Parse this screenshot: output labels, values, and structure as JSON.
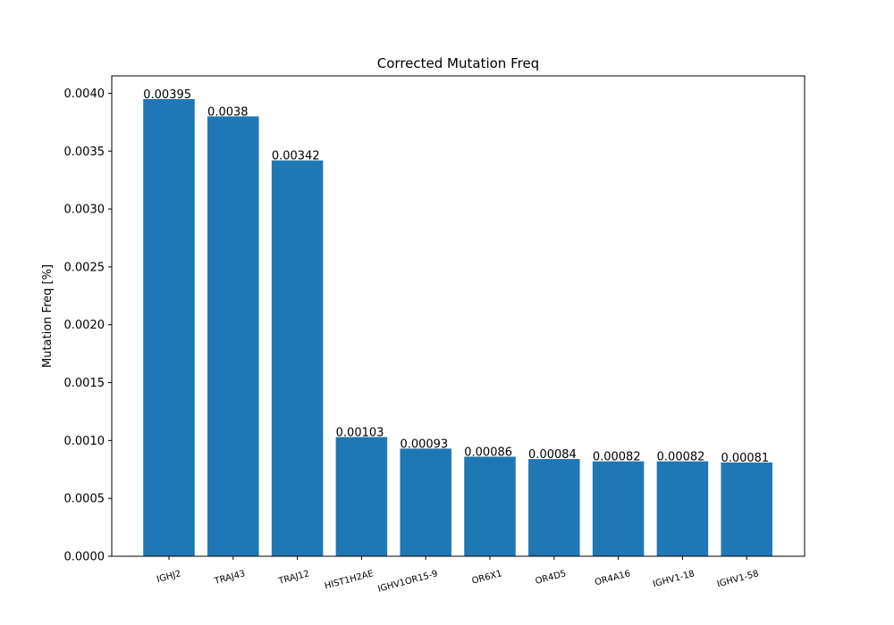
{
  "chart_data": {
    "type": "bar",
    "title": "Corrected Mutation Freq",
    "xlabel": "",
    "ylabel": "Mutation Freq [%]",
    "ylim": [
      0,
      0.00415
    ],
    "yticks": [
      "0.0000",
      "0.0005",
      "0.0010",
      "0.0015",
      "0.0020",
      "0.0025",
      "0.0030",
      "0.0035",
      "0.0040"
    ],
    "ytick_values": [
      0,
      0.0005,
      0.001,
      0.0015,
      0.002,
      0.0025,
      0.003,
      0.0035,
      0.004
    ],
    "categories": [
      "IGHJ2",
      "TRAJ43",
      "TRAJ12",
      "HIST1H2AE",
      "IGHV1OR15-9",
      "OR6X1",
      "OR4D5",
      "OR4A16",
      "IGHV1-18",
      "IGHV1-58"
    ],
    "values": [
      0.00395,
      0.0038,
      0.00342,
      0.00103,
      0.00093,
      0.00086,
      0.00084,
      0.00082,
      0.00082,
      0.00081
    ],
    "data_labels": [
      "0.00395",
      "0.0038",
      "0.00342",
      "0.00103",
      "0.00093",
      "0.00086",
      "0.00084",
      "0.00082",
      "0.00082",
      "0.00081"
    ],
    "bar_color": "#1f77b4",
    "grid": false,
    "xtick_rotation_deg": -15
  }
}
